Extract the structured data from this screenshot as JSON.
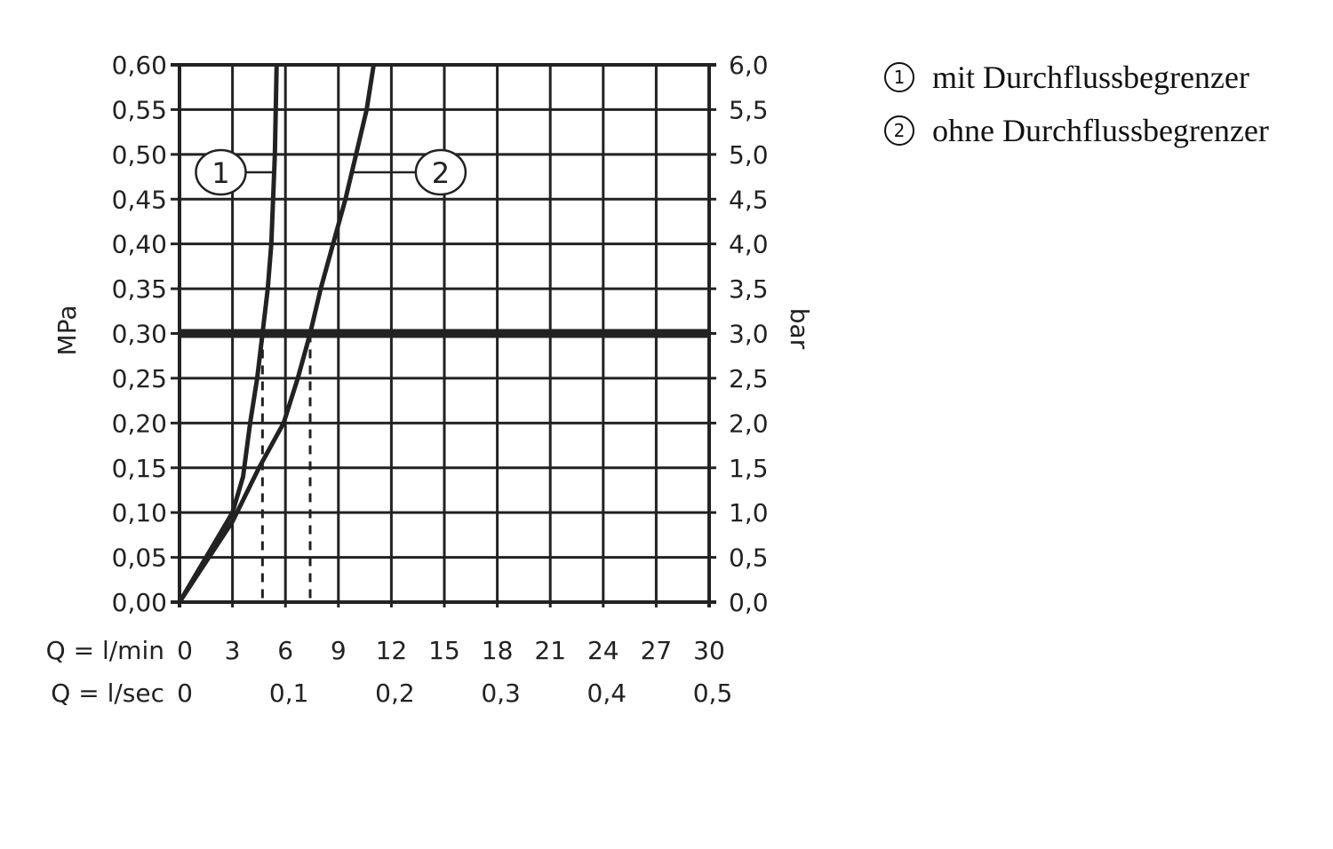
{
  "chart_data": {
    "type": "line",
    "ylabel_left": "MPa",
    "ylabel_right": "bar",
    "xlabel_rows": [
      "Q = l/min",
      "Q = l/sec"
    ],
    "xlim": [
      0,
      30
    ],
    "ylim": [
      0,
      0.6
    ],
    "grid": true,
    "x_ticks_lmin": [
      "0",
      "3",
      "6",
      "9",
      "12",
      "15",
      "18",
      "21",
      "24",
      "27",
      "30"
    ],
    "x_ticks_lsec": [
      {
        "v": 0,
        "label": "0"
      },
      {
        "v": 6,
        "label": "0,1"
      },
      {
        "v": 12,
        "label": "0,2"
      },
      {
        "v": 18,
        "label": "0,3"
      },
      {
        "v": 24,
        "label": "0,4"
      },
      {
        "v": 30,
        "label": "0,5"
      }
    ],
    "y_ticks_left": [
      "0,00",
      "0,05",
      "0,10",
      "0,15",
      "0,20",
      "0,25",
      "0,30",
      "0,35",
      "0,40",
      "0,45",
      "0,50",
      "0,55",
      "0,60"
    ],
    "y_ticks_right": [
      "0,0",
      "0,5",
      "1,0",
      "1,5",
      "2,0",
      "2,5",
      "3,0",
      "3,5",
      "4,0",
      "4,5",
      "5,0",
      "5,5",
      "6,0"
    ],
    "reference_line_y": 0.3,
    "dashed_x": [
      4.7,
      7.4
    ],
    "series": [
      {
        "name": "1",
        "x": [
          0,
          1.5,
          3,
          3.6,
          4.0,
          4.4,
          4.7,
          5.0,
          5.2,
          5.4,
          5.5
        ],
        "y": [
          0,
          0.05,
          0.1,
          0.14,
          0.2,
          0.25,
          0.3,
          0.35,
          0.4,
          0.5,
          0.6
        ],
        "label_at": 0.48
      },
      {
        "name": "2",
        "x": [
          0,
          1.5,
          3,
          4.5,
          5.9,
          6.7,
          7.4,
          8.0,
          8.7,
          9.4,
          10.0,
          10.6,
          11.0
        ],
        "y": [
          0,
          0.045,
          0.09,
          0.15,
          0.2,
          0.25,
          0.3,
          0.35,
          0.4,
          0.45,
          0.5,
          0.55,
          0.6
        ],
        "label_at": 0.48
      }
    ],
    "color": "#222222"
  },
  "legend": [
    {
      "num": "1",
      "text": "mit Durchflussbegrenzer"
    },
    {
      "num": "2",
      "text": "ohne Durchflussbegrenzer"
    }
  ]
}
